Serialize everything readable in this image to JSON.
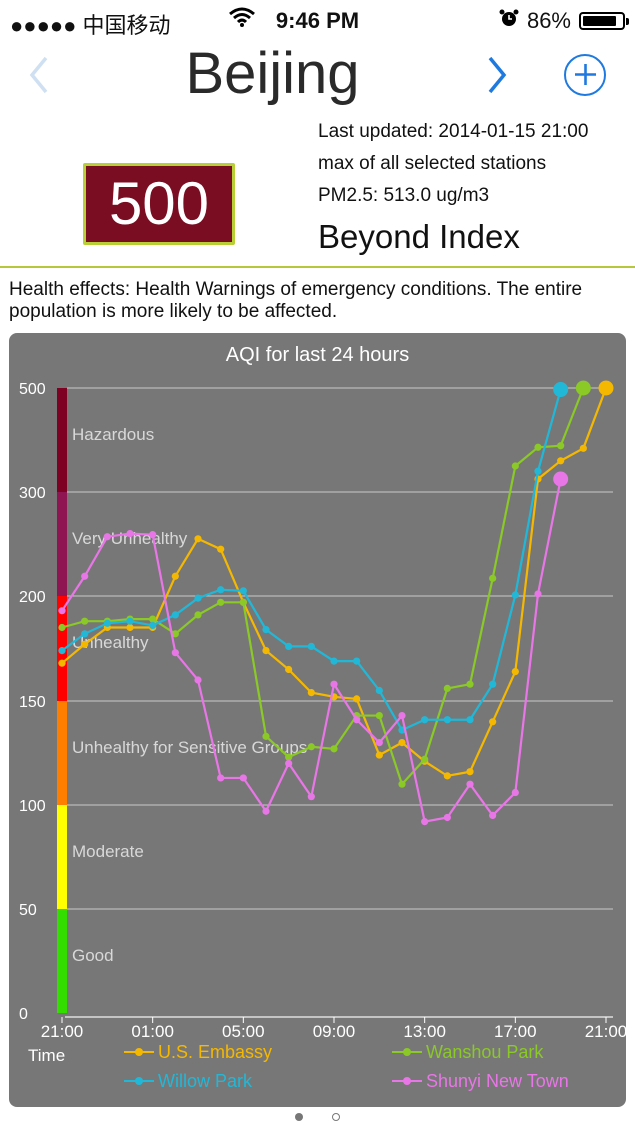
{
  "status": {
    "carrier": "●●●●● 中国移动",
    "time": "9:46 PM",
    "battery": "86%",
    "battery_level": 0.86
  },
  "nav": {
    "title": "Beijing",
    "back_icon": "chevron-left-icon",
    "next_icon": "chevron-right-icon",
    "add_icon": "plus-circle-icon",
    "accent": "#1f7ae0"
  },
  "aqi": {
    "value": "500",
    "color": "#7b0d23"
  },
  "info": {
    "updated": "Last updated: 2014-01-15 21:00",
    "scope": "max of all selected stations",
    "pm25": "PM2.5: 513.0 ug/m3",
    "level": "Beyond Index"
  },
  "health": "Health effects: Health Warnings of emergency conditions. The entire population is more likely to be affected.",
  "pager": {
    "count": 2,
    "current": 0
  },
  "chart_data": {
    "type": "line",
    "title": "AQI for last 24 hours",
    "xlabel": "Time",
    "x_ticks": [
      "21:00",
      "01:00",
      "05:00",
      "09:00",
      "13:00",
      "17:00",
      "21:00"
    ],
    "y_ticks": [
      "0",
      "50",
      "100",
      "150",
      "200",
      "300",
      "500"
    ],
    "y_tick_values": [
      0,
      50,
      100,
      150,
      200,
      300,
      500
    ],
    "bands": [
      {
        "name": "Good",
        "from": 0,
        "to": 50,
        "color": "#33dd00"
      },
      {
        "name": "Moderate",
        "from": 50,
        "to": 100,
        "color": "#ffff00"
      },
      {
        "name": "Unhealthy for Sensitive Groups",
        "from": 100,
        "to": 150,
        "color": "#ff7e00"
      },
      {
        "name": "Unhealthy",
        "from": 150,
        "to": 200,
        "color": "#ff0000"
      },
      {
        "name": "Very Unhealthy",
        "from": 200,
        "to": 300,
        "color": "#8f1552"
      },
      {
        "name": "Hazardous",
        "from": 300,
        "to": 500,
        "color": "#7e0023"
      }
    ],
    "hours": [
      0,
      1,
      2,
      3,
      4,
      5,
      6,
      7,
      8,
      9,
      10,
      11,
      12,
      13,
      14,
      15,
      16,
      17,
      18,
      19,
      20,
      21,
      22,
      23,
      24
    ],
    "series": [
      {
        "name": "U.S. Embassy",
        "color": "#f5b800",
        "values": [
          168,
          177,
          185,
          185,
          185,
          219,
          255,
          245,
          197,
          174,
          165,
          154,
          152,
          151,
          124,
          130,
          121,
          114,
          116,
          140,
          164,
          325,
          360,
          384,
          500
        ]
      },
      {
        "name": "Wanshou Park",
        "color": "#8ac926",
        "values": [
          185,
          188,
          188,
          189,
          189,
          182,
          191,
          197,
          197,
          133,
          123,
          128,
          127,
          143,
          143,
          110,
          122,
          156,
          158,
          217,
          350,
          386,
          389,
          500,
          null
        ]
      },
      {
        "name": "Willow Park",
        "color": "#21b8d8",
        "values": [
          174,
          182,
          187,
          188,
          186,
          191,
          199,
          206,
          205,
          184,
          176,
          176,
          169,
          169,
          155,
          136,
          141,
          141,
          141,
          158,
          201,
          340,
          497,
          null,
          null
        ]
      },
      {
        "name": "Shunyi New Town",
        "color": "#e876e6",
        "values": [
          193,
          219,
          257,
          260,
          259,
          173,
          160,
          113,
          113,
          97,
          120,
          104,
          158,
          141,
          130,
          143,
          92,
          94,
          110,
          95,
          106,
          202,
          325,
          null,
          null
        ]
      }
    ]
  }
}
